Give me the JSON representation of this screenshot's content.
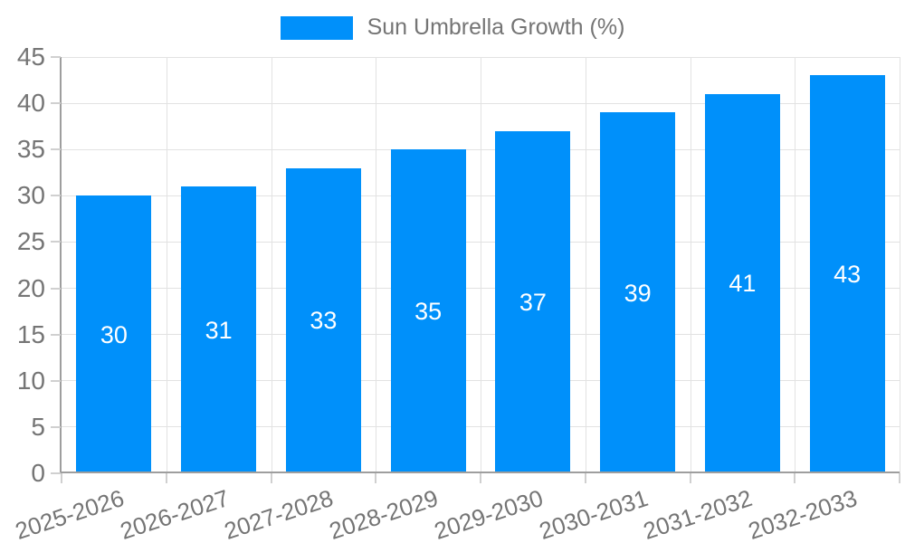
{
  "legend": {
    "label": "Sun Umbrella Growth (%)"
  },
  "chart_data": {
    "type": "bar",
    "title": "",
    "categories": [
      "2025-2026",
      "2026-2027",
      "2027-2028",
      "2028-2029",
      "2029-2030",
      "2030-2031",
      "2031-2032",
      "2032-2033"
    ],
    "values": [
      30,
      31,
      33,
      35,
      37,
      39,
      41,
      43
    ],
    "series_name": "Sun Umbrella Growth (%)",
    "xlabel": "",
    "ylabel": "",
    "ylim": [
      0,
      45
    ],
    "ytick_step": 5,
    "ytick_labels": [
      "0",
      "5",
      "10",
      "15",
      "20",
      "25",
      "30",
      "35",
      "40",
      "45"
    ],
    "grid": "both",
    "legend_position": "top-center",
    "value_labels_position": "inside-center",
    "colors": {
      "bar": "#0090fa",
      "value_label": "#ffffff",
      "axis_text": "#757575",
      "axis_line": "#9e9e9e",
      "gridline": "#e2e2e2",
      "tick": "#d0d0d0",
      "background": "#ffffff"
    }
  }
}
